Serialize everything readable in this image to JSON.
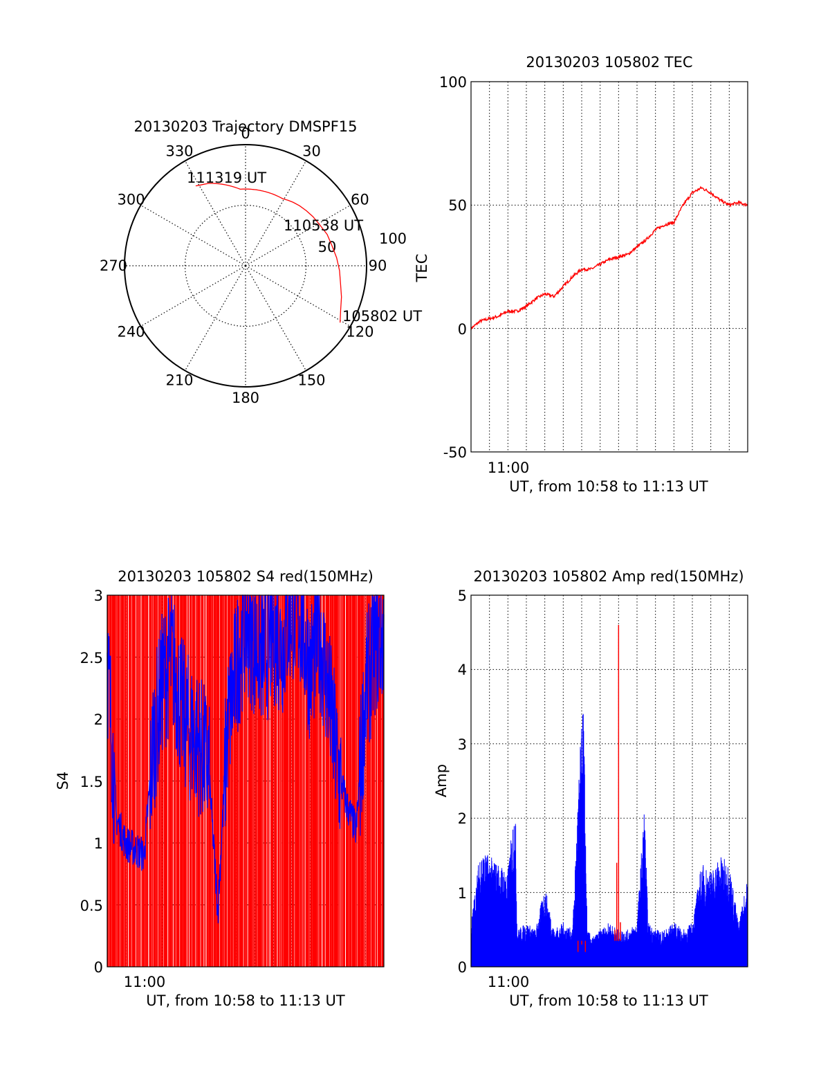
{
  "colors": {
    "red": "#ff0000",
    "blue": "#0000ff",
    "axis": "#000000",
    "grid": "#000000"
  },
  "chart_data": [
    {
      "type": "polar",
      "title": "20130203 Trajectory DMSPF15",
      "angle_ticks": [
        "0",
        "30",
        "60",
        "90",
        "120",
        "150",
        "180",
        "210",
        "240",
        "270",
        "300",
        "330"
      ],
      "radial_ticks": [
        "50",
        "100"
      ],
      "rlim": [
        0,
        100
      ],
      "grid": true,
      "track": {
        "azimuth_deg": [
          121,
          115,
          108,
          101,
          93,
          85,
          77,
          69,
          61,
          54,
          48,
          42,
          37,
          33,
          29,
          26,
          23,
          21,
          19,
          17,
          16,
          15,
          14,
          13,
          12,
          11,
          10,
          9,
          8,
          7,
          6,
          5,
          4,
          3,
          2,
          1,
          360,
          359,
          358,
          356,
          354,
          352,
          350,
          348,
          346,
          344,
          342,
          340,
          338,
          336,
          333,
          330,
          328
        ],
        "elevation_deg": [
          8,
          12,
          15,
          18,
          20,
          22,
          24,
          25,
          27,
          28,
          29,
          30,
          31,
          32,
          33,
          33,
          33,
          33,
          33,
          33,
          33,
          33,
          33,
          33,
          33,
          33,
          33,
          33,
          33,
          33,
          33,
          33,
          33,
          33,
          33,
          33,
          33,
          33,
          33,
          33,
          32,
          31,
          30,
          29,
          28,
          27,
          26,
          25,
          24,
          23,
          22,
          21,
          20
        ]
      },
      "annotations": [
        "111319 UT",
        "110538 UT",
        "105802 UT"
      ]
    },
    {
      "type": "line",
      "title": "20130203 105802 TEC",
      "xlabel": "UT, from 10:58 to 11:13 UT",
      "ylabel": "TEC",
      "x_tick_labels": [
        "11:00"
      ],
      "y_ticks": [
        "100",
        "50",
        "0",
        "-50"
      ],
      "ylim": [
        -50,
        100
      ],
      "grid": true,
      "series": [
        {
          "color": "red",
          "x_minutes": [
            0,
            0.5,
            1.0,
            1.5,
            2.0,
            2.5,
            3.0,
            3.5,
            4.0,
            4.5,
            5.0,
            5.5,
            6.0,
            6.5,
            7.0,
            7.5,
            8.0,
            8.5,
            9.0,
            9.5,
            10.0,
            10.5,
            11.0,
            11.5,
            12.0,
            12.5,
            13.0,
            13.5,
            14.0,
            14.5,
            15.0
          ],
          "values": [
            0,
            3,
            4,
            5,
            7,
            7,
            9,
            12,
            14,
            13,
            17,
            21,
            24,
            24,
            26,
            28,
            29,
            30,
            33,
            36,
            40,
            42,
            43,
            50,
            55,
            57,
            55,
            52,
            50,
            51,
            50
          ]
        }
      ]
    },
    {
      "type": "line",
      "title": "20130203 105802 S4 red(150MHz)",
      "xlabel": "UT, from 10:58 to 11:13 UT",
      "ylabel": "S4",
      "x_tick_labels": [
        "11:00"
      ],
      "y_ticks": [
        "3",
        "2.5",
        "2",
        "1.5",
        "1",
        "0.5",
        "0"
      ],
      "ylim": [
        0,
        3
      ],
      "grid": true,
      "series": [
        {
          "color": "red",
          "description_level": "dense spikes spanning 0 to 3 across full window"
        },
        {
          "color": "blue",
          "x_minutes": [
            0,
            0.5,
            1.0,
            1.5,
            2.0,
            2.5,
            3.0,
            3.5,
            4.0,
            4.5,
            5.0,
            5.5,
            6.0,
            6.5,
            7.0,
            7.5,
            8.0,
            8.5,
            9.0,
            9.5,
            10.0,
            10.5,
            11.0,
            11.5,
            12.0,
            12.5,
            13.0,
            13.5,
            14.0,
            14.5,
            15.0
          ],
          "values": [
            2.5,
            1.2,
            1.0,
            0.95,
            0.9,
            1.8,
            2.3,
            2.5,
            2.1,
            1.9,
            1.8,
            1.6,
            0.45,
            1.9,
            2.4,
            2.8,
            2.6,
            2.5,
            2.7,
            2.6,
            2.9,
            2.8,
            2.4,
            2.7,
            2.2,
            1.6,
            1.3,
            1.1,
            2.2,
            2.6,
            2.7
          ]
        }
      ]
    },
    {
      "type": "line",
      "title": "20130203 105802 Amp red(150MHz)",
      "xlabel": "UT, from 10:58 to 11:13 UT",
      "ylabel": "Amp",
      "x_tick_labels": [
        "11:00"
      ],
      "y_ticks": [
        "5",
        "4",
        "3",
        "2",
        "1",
        "0"
      ],
      "ylim": [
        0,
        5
      ],
      "grid": true,
      "series": [
        {
          "color": "red",
          "x_minutes": [
            5.8,
            6.0,
            6.2,
            7.8,
            7.9,
            8.0,
            8.1
          ],
          "values": [
            0.2,
            0.3,
            0.2,
            0.5,
            1.4,
            4.6,
            0.6
          ]
        },
        {
          "color": "blue",
          "x_minutes": [
            0,
            0.5,
            1.0,
            1.5,
            2.0,
            2.4,
            2.5,
            3.0,
            3.5,
            4.0,
            4.5,
            5.0,
            5.5,
            5.9,
            6.1,
            6.3,
            6.6,
            7.0,
            7.5,
            8.0,
            8.5,
            9.0,
            9.4,
            9.6,
            10.0,
            10.5,
            11.0,
            11.5,
            12.0,
            12.5,
            13.0,
            13.5,
            14.0,
            14.5,
            15.0
          ],
          "values": [
            0.6,
            1.6,
            1.5,
            1.4,
            1.3,
            2.3,
            0.5,
            0.6,
            0.5,
            1.1,
            0.5,
            0.6,
            0.5,
            2.9,
            3.6,
            0.5,
            0.4,
            0.5,
            0.6,
            0.5,
            0.5,
            0.6,
            2.2,
            0.6,
            0.5,
            0.5,
            0.6,
            0.5,
            0.6,
            1.4,
            1.3,
            1.5,
            1.4,
            0.6,
            1.2
          ]
        }
      ]
    }
  ]
}
